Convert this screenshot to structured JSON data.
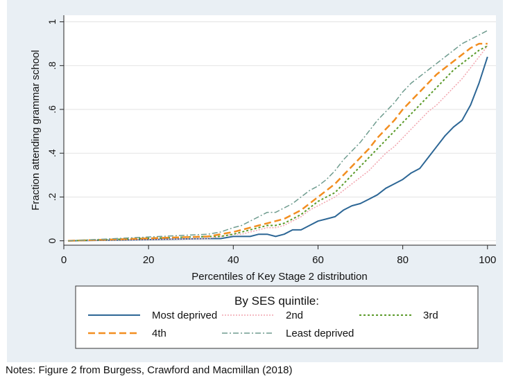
{
  "notes": "Notes: Figure 2 from Burgess, Crawford and Macmillan (2018)",
  "chart_data": {
    "type": "line",
    "title": "",
    "xlabel": "Percentiles of Key Stage 2 distribution",
    "ylabel": "Fraction attending grammar school",
    "xlim": [
      0,
      102
    ],
    "ylim": [
      -0.02,
      1.03
    ],
    "xticks": [
      0,
      20,
      40,
      60,
      80,
      100
    ],
    "xtick_labels": [
      "0",
      "20",
      "40",
      "60",
      "80",
      "100"
    ],
    "yticks": [
      0,
      0.2,
      0.4,
      0.6,
      0.8,
      1
    ],
    "ytick_labels": [
      "0",
      ".2",
      ".4",
      ".6",
      ".8",
      "1"
    ],
    "grid": true,
    "legend": {
      "title": "By SES quintile:",
      "position": "bottom",
      "columns": 3
    },
    "x": [
      1,
      34,
      37,
      40,
      42,
      44,
      46,
      48,
      50,
      52,
      54,
      56,
      58,
      60,
      62,
      64,
      66,
      68,
      70,
      72,
      74,
      76,
      78,
      80,
      82,
      84,
      86,
      88,
      90,
      92,
      94,
      96,
      98,
      100
    ],
    "series": [
      {
        "name": "Most deprived",
        "color": "#2c6695",
        "dash": "",
        "width": 2,
        "values": [
          0,
          0.01,
          0.01,
          0.02,
          0.02,
          0.02,
          0.03,
          0.03,
          0.02,
          0.03,
          0.05,
          0.05,
          0.07,
          0.09,
          0.1,
          0.11,
          0.14,
          0.16,
          0.17,
          0.19,
          0.21,
          0.24,
          0.26,
          0.28,
          0.31,
          0.33,
          0.38,
          0.43,
          0.48,
          0.52,
          0.55,
          0.62,
          0.72,
          0.84
        ]
      },
      {
        "name": "2nd",
        "color": "#f2a3ad",
        "dash": "2,2",
        "width": 1.5,
        "values": [
          0,
          0.01,
          0.02,
          0.03,
          0.03,
          0.04,
          0.05,
          0.06,
          0.06,
          0.07,
          0.09,
          0.11,
          0.14,
          0.16,
          0.18,
          0.2,
          0.23,
          0.26,
          0.29,
          0.32,
          0.36,
          0.4,
          0.43,
          0.47,
          0.51,
          0.55,
          0.59,
          0.62,
          0.66,
          0.7,
          0.74,
          0.79,
          0.84,
          0.89
        ]
      },
      {
        "name": "3rd",
        "color": "#5a9a29",
        "dash": "3,3",
        "width": 2,
        "values": [
          0,
          0.02,
          0.02,
          0.03,
          0.04,
          0.05,
          0.06,
          0.07,
          0.07,
          0.08,
          0.1,
          0.12,
          0.15,
          0.18,
          0.2,
          0.22,
          0.26,
          0.3,
          0.34,
          0.38,
          0.42,
          0.46,
          0.5,
          0.54,
          0.58,
          0.62,
          0.66,
          0.7,
          0.74,
          0.78,
          0.81,
          0.84,
          0.87,
          0.89
        ]
      },
      {
        "name": "4th",
        "color": "#f28e20",
        "dash": "10,5",
        "width": 2.5,
        "values": [
          0,
          0.02,
          0.03,
          0.04,
          0.05,
          0.06,
          0.07,
          0.08,
          0.09,
          0.1,
          0.12,
          0.14,
          0.17,
          0.2,
          0.23,
          0.26,
          0.3,
          0.34,
          0.38,
          0.42,
          0.47,
          0.51,
          0.55,
          0.6,
          0.64,
          0.68,
          0.72,
          0.76,
          0.79,
          0.82,
          0.85,
          0.88,
          0.9,
          0.9
        ]
      },
      {
        "name": "Least deprived",
        "color": "#6f9c8f",
        "dash": "8,3,2,3",
        "width": 1.5,
        "values": [
          0,
          0.03,
          0.04,
          0.06,
          0.07,
          0.09,
          0.11,
          0.13,
          0.13,
          0.15,
          0.17,
          0.2,
          0.23,
          0.25,
          0.28,
          0.32,
          0.37,
          0.41,
          0.45,
          0.5,
          0.55,
          0.59,
          0.63,
          0.68,
          0.72,
          0.75,
          0.78,
          0.81,
          0.84,
          0.87,
          0.9,
          0.92,
          0.94,
          0.96
        ]
      }
    ]
  }
}
